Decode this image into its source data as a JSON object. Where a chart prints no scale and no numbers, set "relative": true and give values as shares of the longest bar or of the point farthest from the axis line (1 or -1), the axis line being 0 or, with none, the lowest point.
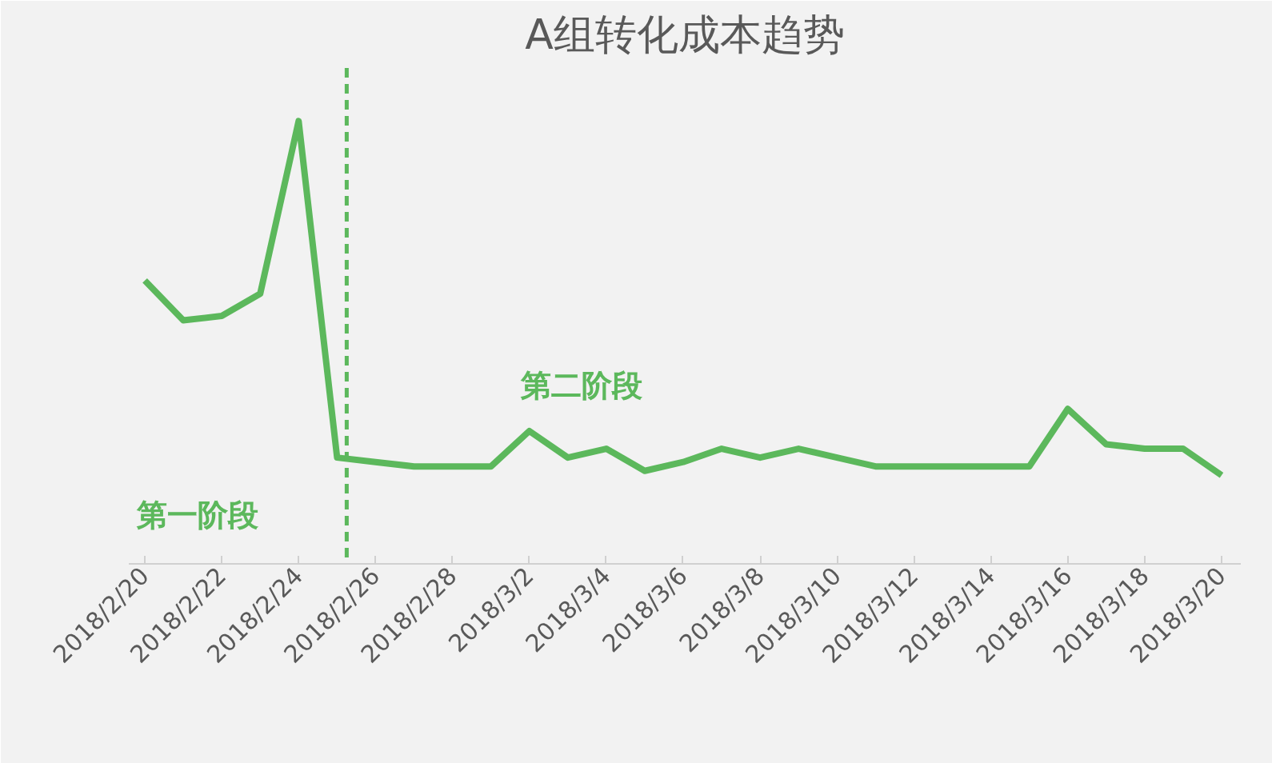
{
  "chart_data": {
    "type": "line",
    "title": "A组转化成本趋势",
    "relative": true,
    "grid": false,
    "marker": "none",
    "line_style": "solid",
    "x": [
      "2018-02-20",
      "2018-02-21",
      "2018-02-22",
      "2018-02-23",
      "2018-02-24",
      "2018-02-25",
      "2018-02-26",
      "2018-02-27",
      "2018-02-28",
      "2018-03-01",
      "2018-03-02",
      "2018-03-03",
      "2018-03-04",
      "2018-03-05",
      "2018-03-06",
      "2018-03-07",
      "2018-03-08",
      "2018-03-09",
      "2018-03-10",
      "2018-03-11",
      "2018-03-12",
      "2018-03-13",
      "2018-03-14",
      "2018-03-15",
      "2018-03-16",
      "2018-03-17",
      "2018-03-18",
      "2018-03-19",
      "2018-03-20"
    ],
    "xlim": [
      "2018-02-19T14:00",
      "2018-03-20T12:00"
    ],
    "xticks": [
      {
        "value": "2018-02-20",
        "label": "2018/2/20"
      },
      {
        "value": "2018-02-22",
        "label": "2018/2/22"
      },
      {
        "value": "2018-02-24",
        "label": "2018/2/24"
      },
      {
        "value": "2018-02-26",
        "label": "2018/2/26"
      },
      {
        "value": "2018-02-28",
        "label": "2018/2/28"
      },
      {
        "value": "2018-03-02",
        "label": "2018/3/2"
      },
      {
        "value": "2018-03-04",
        "label": "2018/3/4"
      },
      {
        "value": "2018-03-06",
        "label": "2018/3/6"
      },
      {
        "value": "2018-03-08",
        "label": "2018/3/8"
      },
      {
        "value": "2018-03-10",
        "label": "2018/3/10"
      },
      {
        "value": "2018-03-12",
        "label": "2018/3/12"
      },
      {
        "value": "2018-03-14",
        "label": "2018/3/14"
      },
      {
        "value": "2018-03-16",
        "label": "2018/3/16"
      },
      {
        "value": "2018-03-18",
        "label": "2018/3/18"
      },
      {
        "value": "2018-03-20",
        "label": "2018/3/20"
      }
    ],
    "series": [
      {
        "color": "#5cb85c",
        "values": [
          0.64,
          0.55,
          0.56,
          0.61,
          1,
          0.24,
          0.23,
          0.22,
          0.22,
          0.22,
          0.3,
          0.24,
          0.26,
          0.21,
          0.23,
          0.26,
          0.24,
          0.26,
          0.24,
          0.22,
          0.22,
          0.22,
          0.22,
          0.22,
          0.35,
          0.27,
          0.26,
          0.26,
          0.2
        ]
      }
    ],
    "ref_lines": [
      {
        "axis": "x",
        "value": "2018-02-25T06:00",
        "color": "#5cb85c",
        "line_style": "dashed"
      }
    ],
    "annotations": [
      "第一阶段",
      "第二阶段"
    ]
  }
}
